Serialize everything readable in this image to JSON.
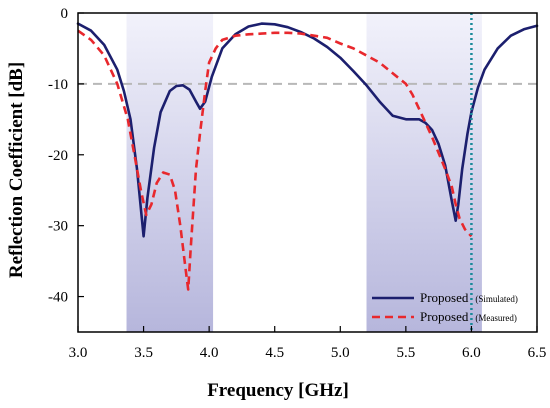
{
  "chart_data": {
    "type": "line",
    "xlabel": "Frequency [GHz]",
    "ylabel": "Reflection Coefficient [dB]",
    "xlim": [
      3.0,
      6.5
    ],
    "ylim": [
      -45,
      0
    ],
    "x_ticks": [
      "3.0",
      "3.5",
      "4.0",
      "4.5",
      "5.0",
      "5.5",
      "6.0",
      "6.5"
    ],
    "y_ticks": [
      "0",
      "-10",
      "-20",
      "-30",
      "-40"
    ],
    "grid": false,
    "legend_position": "bottom-right",
    "reference_line_db": -10,
    "marker_line_ghz": 6.0,
    "shaded_bands": [
      [
        3.37,
        4.03
      ],
      [
        5.2,
        6.08
      ]
    ],
    "series": [
      {
        "name": "Proposed",
        "note": "(Simulated)",
        "color": "#1c1f6e",
        "style": "solid",
        "points": [
          [
            3.0,
            -1.5
          ],
          [
            3.1,
            -2.5
          ],
          [
            3.2,
            -4.5
          ],
          [
            3.3,
            -8
          ],
          [
            3.35,
            -11
          ],
          [
            3.4,
            -15
          ],
          [
            3.45,
            -22
          ],
          [
            3.5,
            -31.5
          ],
          [
            3.53,
            -26
          ],
          [
            3.58,
            -19
          ],
          [
            3.63,
            -14
          ],
          [
            3.7,
            -11
          ],
          [
            3.75,
            -10.3
          ],
          [
            3.8,
            -10.2
          ],
          [
            3.85,
            -10.8
          ],
          [
            3.9,
            -12.5
          ],
          [
            3.93,
            -13.5
          ],
          [
            3.97,
            -12.5
          ],
          [
            4.02,
            -9
          ],
          [
            4.1,
            -5
          ],
          [
            4.2,
            -3
          ],
          [
            4.3,
            -1.9
          ],
          [
            4.4,
            -1.5
          ],
          [
            4.5,
            -1.6
          ],
          [
            4.6,
            -2
          ],
          [
            4.7,
            -2.7
          ],
          [
            4.8,
            -3.6
          ],
          [
            4.9,
            -4.8
          ],
          [
            5.0,
            -6.3
          ],
          [
            5.1,
            -8.2
          ],
          [
            5.2,
            -10.2
          ],
          [
            5.3,
            -12.5
          ],
          [
            5.4,
            -14.5
          ],
          [
            5.5,
            -15
          ],
          [
            5.6,
            -15
          ],
          [
            5.65,
            -15.5
          ],
          [
            5.7,
            -16.5
          ],
          [
            5.75,
            -18.5
          ],
          [
            5.8,
            -21.5
          ],
          [
            5.85,
            -26.5
          ],
          [
            5.88,
            -29.3
          ],
          [
            5.9,
            -27
          ],
          [
            5.93,
            -22
          ],
          [
            5.97,
            -17
          ],
          [
            6.0,
            -14
          ],
          [
            6.05,
            -10.5
          ],
          [
            6.1,
            -8
          ],
          [
            6.2,
            -5
          ],
          [
            6.3,
            -3.2
          ],
          [
            6.4,
            -2.3
          ],
          [
            6.5,
            -1.8
          ]
        ]
      },
      {
        "name": "Proposed",
        "note": "(Measured)",
        "color": "#e8282d",
        "style": "dashed",
        "points": [
          [
            3.0,
            -2.5
          ],
          [
            3.1,
            -3.8
          ],
          [
            3.2,
            -6
          ],
          [
            3.3,
            -10
          ],
          [
            3.38,
            -15
          ],
          [
            3.43,
            -20
          ],
          [
            3.48,
            -25
          ],
          [
            3.52,
            -28.5
          ],
          [
            3.56,
            -27
          ],
          [
            3.6,
            -24
          ],
          [
            3.65,
            -22.5
          ],
          [
            3.7,
            -22.8
          ],
          [
            3.74,
            -25
          ],
          [
            3.78,
            -30
          ],
          [
            3.82,
            -36
          ],
          [
            3.84,
            -39
          ],
          [
            3.86,
            -33
          ],
          [
            3.9,
            -22
          ],
          [
            3.93,
            -17
          ],
          [
            3.97,
            -11
          ],
          [
            4.0,
            -7
          ],
          [
            4.05,
            -5
          ],
          [
            4.1,
            -3.8
          ],
          [
            4.2,
            -3.2
          ],
          [
            4.3,
            -3.0
          ],
          [
            4.4,
            -2.9
          ],
          [
            4.5,
            -2.8
          ],
          [
            4.6,
            -2.8
          ],
          [
            4.7,
            -2.9
          ],
          [
            4.8,
            -3.2
          ],
          [
            4.9,
            -3.5
          ],
          [
            5.0,
            -4.3
          ],
          [
            5.1,
            -5
          ],
          [
            5.2,
            -6
          ],
          [
            5.3,
            -7
          ],
          [
            5.4,
            -8.5
          ],
          [
            5.5,
            -10
          ],
          [
            5.55,
            -11.5
          ],
          [
            5.6,
            -13.5
          ],
          [
            5.7,
            -17.5
          ],
          [
            5.8,
            -22
          ],
          [
            5.85,
            -24.5
          ],
          [
            5.88,
            -27
          ],
          [
            5.91,
            -29
          ],
          [
            5.95,
            -30.5
          ],
          [
            6.0,
            -31.5
          ]
        ]
      }
    ]
  }
}
